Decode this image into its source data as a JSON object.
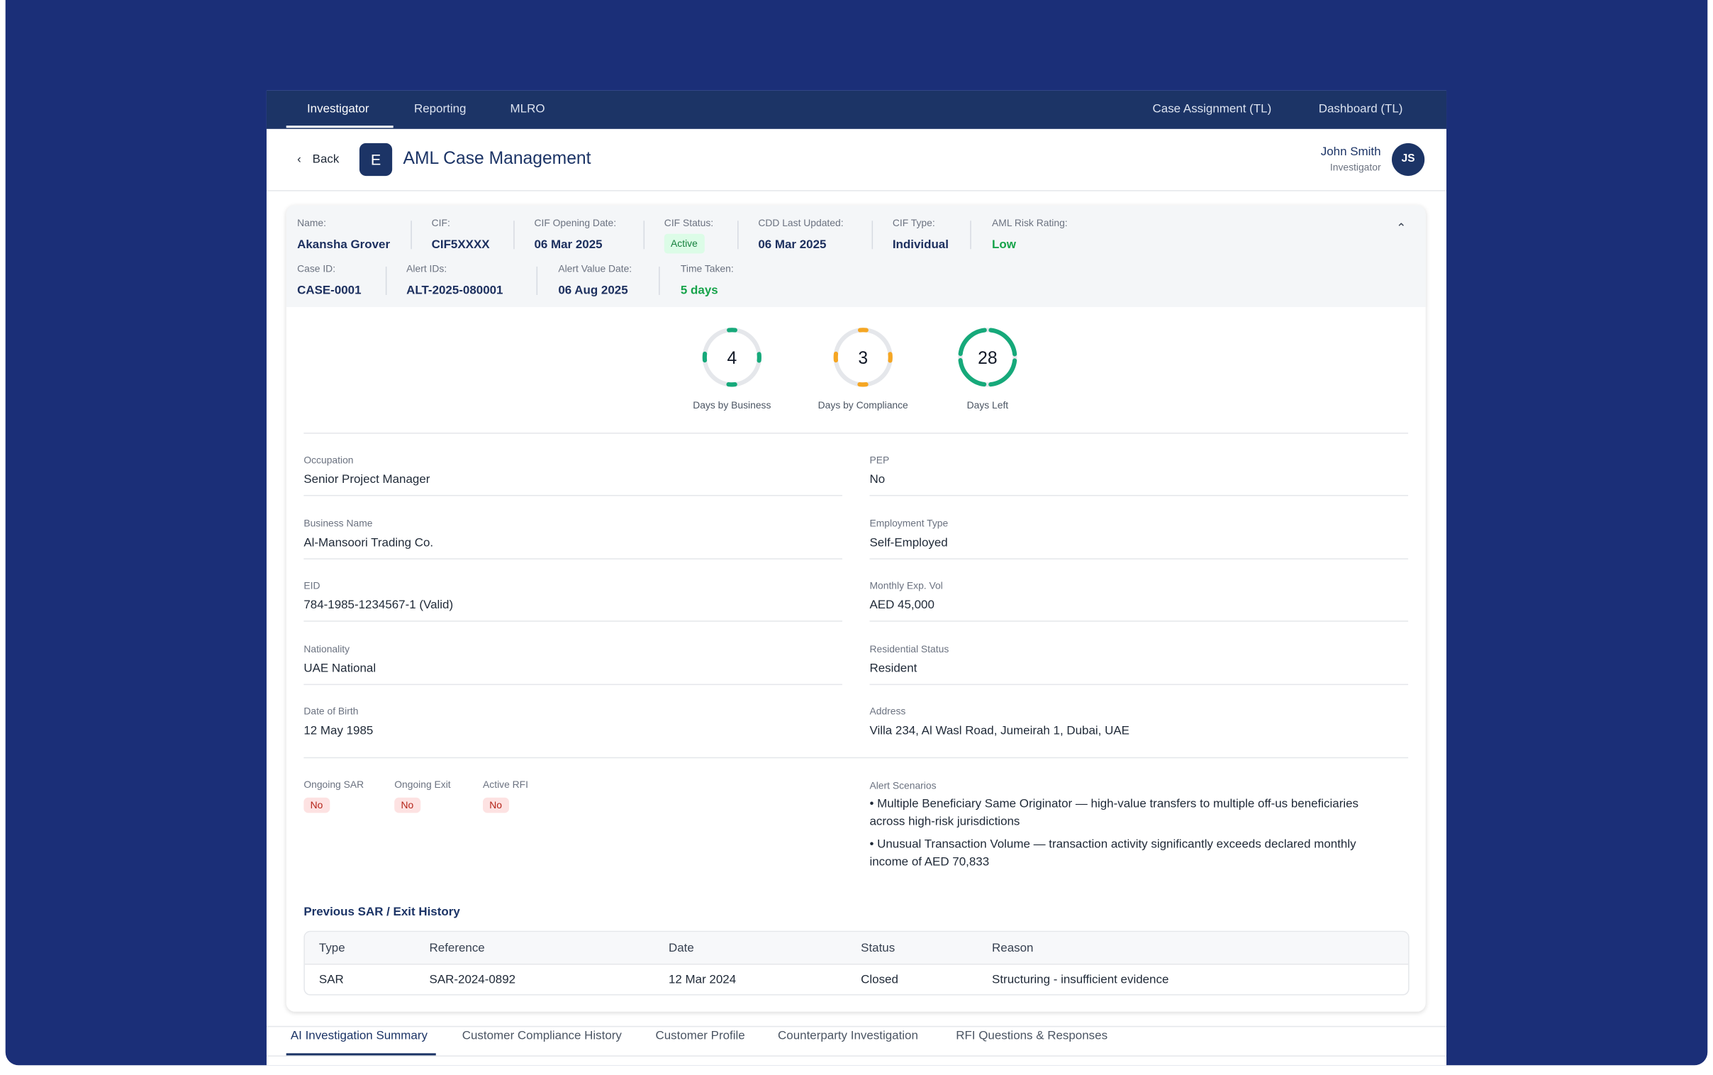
{
  "nav": {
    "left": [
      "Investigator",
      "Reporting",
      "MLRO"
    ],
    "right": [
      "Case Assignment (TL)",
      "Dashboard (TL)"
    ]
  },
  "header": {
    "back": "Back",
    "logo": "E",
    "title": "AML Case Management",
    "user_name": "John Smith",
    "user_role": "Investigator",
    "initials": "JS"
  },
  "summary": {
    "row1": [
      {
        "label": "Name:",
        "value": "Akansha Grover"
      },
      {
        "label": "CIF:",
        "value": "CIF5XXXX"
      },
      {
        "label": "CIF Opening Date:",
        "value": "06 Mar 2025"
      },
      {
        "label": "CIF Status:",
        "value": "Active"
      },
      {
        "label": "CDD Last Updated:",
        "value": "06 Mar 2025"
      },
      {
        "label": "CIF Type:",
        "value": "Individual"
      },
      {
        "label": "AML Risk Rating:",
        "value": "Low"
      }
    ],
    "row2": [
      {
        "label": "Case ID:",
        "value": "CASE-0001"
      },
      {
        "label": "Alert IDs:",
        "value": "ALT-2025-080001"
      },
      {
        "label": "Alert Value Date:",
        "value": "06 Aug 2025"
      },
      {
        "label": "Time Taken:",
        "value": "5 days"
      }
    ]
  },
  "metrics": [
    {
      "value": 4,
      "label": "Days by Business"
    },
    {
      "value": 3,
      "label": "Days by Compliance"
    },
    {
      "value": 28,
      "label": "Days Left"
    }
  ],
  "details": {
    "left": [
      {
        "label": "Occupation",
        "value": "Senior Project Manager"
      },
      {
        "label": "Business Name",
        "value": "Al-Mansoori Trading Co."
      },
      {
        "label": "EID",
        "value": "784-1985-1234567-1 (Valid)"
      },
      {
        "label": "Nationality",
        "value": "UAE National"
      },
      {
        "label": "Date of Birth",
        "value": "12 May 1985"
      }
    ],
    "right": [
      {
        "label": "PEP",
        "value": "No"
      },
      {
        "label": "Employment Type",
        "value": "Self-Employed"
      },
      {
        "label": "Monthly Exp. Vol",
        "value": "AED 45,000"
      },
      {
        "label": "Residential Status",
        "value": "Resident"
      },
      {
        "label": "Address",
        "value": "Villa 234, Al Wasl Road, Jumeirah 1, Dubai, UAE"
      }
    ]
  },
  "flags": [
    {
      "label": "Ongoing SAR",
      "value": "No"
    },
    {
      "label": "Ongoing Exit",
      "value": "No"
    },
    {
      "label": "Active RFI",
      "value": "No"
    }
  ],
  "alert_scenarios": {
    "label": "Alert Scenarios",
    "items": [
      "• Multiple Beneficiary Same Originator — high-value transfers to multiple off-us beneficiaries across high-risk jurisdictions",
      "• Unusual Transaction Volume — transaction activity significantly exceeds declared monthly income of AED 70,833"
    ]
  },
  "history": {
    "title": "Previous SAR / Exit History",
    "columns": [
      "Type",
      "Reference",
      "Date",
      "Status",
      "Reason"
    ],
    "rows": [
      [
        "SAR",
        "SAR-2024-0892",
        "12 Mar 2024",
        "Closed",
        "Structuring - insufficient evidence"
      ]
    ]
  },
  "tabs": [
    "AI Investigation Summary",
    "Customer Compliance History",
    "Customer Profile",
    "Counterparty Investigation",
    "RFI Questions & Responses"
  ]
}
